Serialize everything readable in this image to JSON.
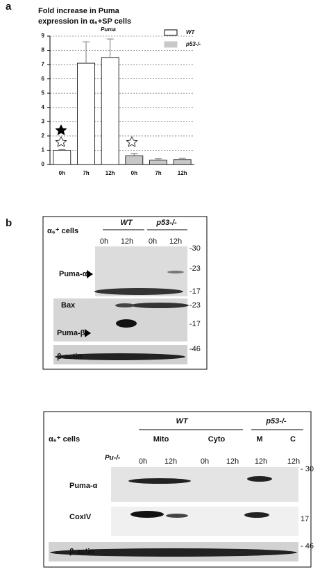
{
  "panel_labels": [
    "a",
    "b"
  ],
  "chart_data": {
    "type": "bar",
    "title_lines": [
      "Fold increase in Puma",
      "expression in α₆+SP cells"
    ],
    "annotation": "Puma",
    "categories": [
      "0h",
      "7h",
      "12h",
      "0h",
      "7h",
      "12h"
    ],
    "series": [
      {
        "name": "WT",
        "color": "#ffffff",
        "values": [
          1.0,
          7.1,
          7.5,
          null,
          null,
          null
        ],
        "errors": [
          0.05,
          1.5,
          1.3,
          null,
          null,
          null
        ]
      },
      {
        "name": "p53-/-",
        "color": "#c8c8c8",
        "values": [
          null,
          null,
          null,
          0.6,
          0.3,
          0.35
        ],
        "errors": [
          null,
          null,
          null,
          0.15,
          0.1,
          0.08
        ]
      }
    ],
    "ylim": [
      0,
      9
    ],
    "yticks": [
      0,
      1,
      2,
      3,
      4,
      5,
      6,
      7,
      8,
      9
    ],
    "grid": true,
    "legend": "top-right"
  },
  "blot_1": {
    "header": "α₆⁺ cells",
    "groups": [
      "WT",
      "p53-/-"
    ],
    "lanes": [
      "0h",
      "12h",
      "0h",
      "12h"
    ],
    "rows": [
      "Puma-α",
      "Bax",
      "Puma-β",
      "β-actin"
    ],
    "markers": [
      "-30",
      "-23",
      "-17",
      "-23",
      "-17",
      "-46"
    ]
  },
  "blot_2": {
    "header": "α₆⁺ cells",
    "groups": [
      "WT",
      "p53-/-"
    ],
    "subgroups": [
      "Mito",
      "Cyto",
      "M",
      "C"
    ],
    "control": "Pu-/-",
    "lanes": [
      "0h",
      "12h",
      "0h",
      "12h",
      "12h",
      "12h"
    ],
    "rows": [
      "Puma-α",
      "CoxIV",
      "β-actin"
    ],
    "markers": [
      "- 30",
      "17",
      "- 46"
    ]
  }
}
